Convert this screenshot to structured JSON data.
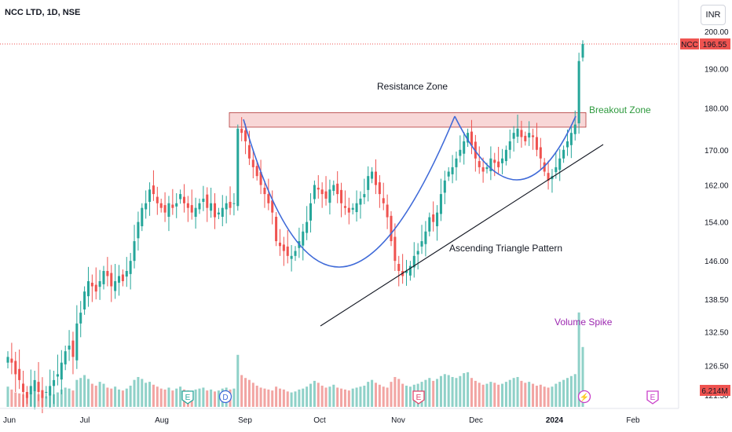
{
  "header": {
    "symbol_title": "NCC LTD, 1D, NSE",
    "currency": "INR"
  },
  "price_tag": {
    "symbol": "NCC",
    "value": "196.55"
  },
  "volume_tag": {
    "value": "6.214M"
  },
  "colors": {
    "up": "#26a69a",
    "down": "#ef5350",
    "vol_up": "#8fd1c8",
    "vol_down": "#f2a5a3",
    "curve": "#3f6ad8",
    "resistance_fill": "#f8d7d7",
    "resistance_border": "#b23a3a",
    "breakout_text": "#2e9a3e",
    "spike_text": "#9c27b0",
    "event_earnings": "#e0446a",
    "event_dividend": "#3f6ad8",
    "event_green": "#26a69a",
    "event_purple": "#c940c9"
  },
  "chart_data": {
    "type": "candlestick",
    "title": "NCC LTD, 1D, NSE",
    "ylim": [
      115,
      206
    ],
    "y_ticks": [
      "200.00",
      "190.00",
      "180.00",
      "170.00",
      "162.00",
      "154.00",
      "146.00",
      "138.50",
      "132.50",
      "126.50",
      "121.50"
    ],
    "y_tick_values": [
      200,
      190,
      180,
      170,
      162,
      154,
      146,
      138.5,
      132.5,
      126.5,
      121.5
    ],
    "x_tick_labels": [
      "Jun",
      "Jul",
      "Aug",
      "Sep",
      "Oct",
      "Nov",
      "Dec",
      "2024",
      "Feb"
    ],
    "last_price": 196.55,
    "last_volume": "6.214M",
    "annotations": {
      "resistance": "Resistance Zone",
      "breakout": "Breakout Zone",
      "triangle": "Ascending Triangle Pattern",
      "volume_spike": "Volume Spike"
    },
    "resistance_zone": [
      176.5,
      178.5
    ],
    "events": [
      {
        "letter": "E",
        "kind": "green",
        "date_label": "Aug"
      },
      {
        "letter": "D",
        "kind": "dividend",
        "date_label": "Aug"
      },
      {
        "letter": "E",
        "kind": "earnings",
        "date_label": "Nov"
      },
      {
        "letter": "⚡",
        "kind": "purple",
        "date_label": "2024"
      },
      {
        "letter": "E",
        "kind": "purple",
        "date_label": "Feb"
      }
    ],
    "series": [
      {
        "name": "price",
        "closes": [
          128,
          127,
          125,
          124,
          122,
          121,
          123,
          124,
          122,
          121,
          122,
          123,
          124,
          125,
          127,
          129,
          130,
          128,
          134,
          136,
          140,
          142,
          141,
          140,
          142,
          144,
          143,
          141,
          142,
          143,
          142,
          144,
          146,
          150,
          154,
          157,
          158,
          161,
          160,
          158,
          157,
          156,
          158,
          157,
          158,
          160,
          158,
          157,
          156,
          157,
          158,
          159,
          157,
          158,
          155,
          156,
          157,
          158,
          157,
          158,
          175,
          174,
          172,
          168,
          166,
          164,
          162,
          160,
          158,
          156,
          150,
          149,
          148,
          147,
          147,
          148,
          150,
          152,
          154,
          158,
          162,
          161,
          160,
          159,
          161,
          162,
          160,
          158,
          157,
          156,
          157,
          158,
          159,
          160,
          164,
          165,
          162,
          160,
          158,
          155,
          150,
          146,
          144,
          143,
          144,
          145,
          147,
          148,
          150,
          152,
          155,
          154,
          156,
          160,
          163,
          165,
          166,
          168,
          170,
          172,
          174,
          171,
          168,
          166,
          165,
          166,
          168,
          167,
          166,
          168,
          170,
          172,
          174,
          175,
          173,
          172,
          174,
          173,
          170,
          168,
          165,
          163,
          164,
          166,
          168,
          170,
          172,
          174,
          176,
          192,
          196.55
        ],
        "volumes_m": [
          2.1,
          1.8,
          1.5,
          1.4,
          1.3,
          1.2,
          1.5,
          1.6,
          1.3,
          1.2,
          1.1,
          1.4,
          1.3,
          1.5,
          1.8,
          2.0,
          1.9,
          1.7,
          2.8,
          3.0,
          3.3,
          2.9,
          2.4,
          2.2,
          2.6,
          2.4,
          2.0,
          1.9,
          2.1,
          1.8,
          1.7,
          1.9,
          2.2,
          2.8,
          3.1,
          2.9,
          2.5,
          2.6,
          2.3,
          2.1,
          1.9,
          1.8,
          2.0,
          1.7,
          1.9,
          2.1,
          1.8,
          1.7,
          1.6,
          1.8,
          1.9,
          2.0,
          1.7,
          1.8,
          1.6,
          1.7,
          1.9,
          2.0,
          1.8,
          1.9,
          5.4,
          3.3,
          3.0,
          2.8,
          2.5,
          2.2,
          2.0,
          1.9,
          1.8,
          1.7,
          2.1,
          1.9,
          1.8,
          1.6,
          1.5,
          1.6,
          1.8,
          1.9,
          2.1,
          2.4,
          2.7,
          2.5,
          2.2,
          2.0,
          2.1,
          2.3,
          2.0,
          1.9,
          1.8,
          1.7,
          1.9,
          2.0,
          2.1,
          2.2,
          2.6,
          2.8,
          2.5,
          2.3,
          2.1,
          2.0,
          2.6,
          3.1,
          2.9,
          2.4,
          2.2,
          2.1,
          2.3,
          2.4,
          2.6,
          2.8,
          3.0,
          2.7,
          2.9,
          3.2,
          3.4,
          3.3,
          3.1,
          3.0,
          3.2,
          3.5,
          3.6,
          3.0,
          2.7,
          2.5,
          2.3,
          2.4,
          2.6,
          2.5,
          2.3,
          2.4,
          2.6,
          2.8,
          3.0,
          3.1,
          2.7,
          2.5,
          2.6,
          2.4,
          2.2,
          2.3,
          2.1,
          2.0,
          2.1,
          2.4,
          2.6,
          2.8,
          3.0,
          3.2,
          3.4,
          9.8,
          6.214
        ]
      }
    ]
  }
}
